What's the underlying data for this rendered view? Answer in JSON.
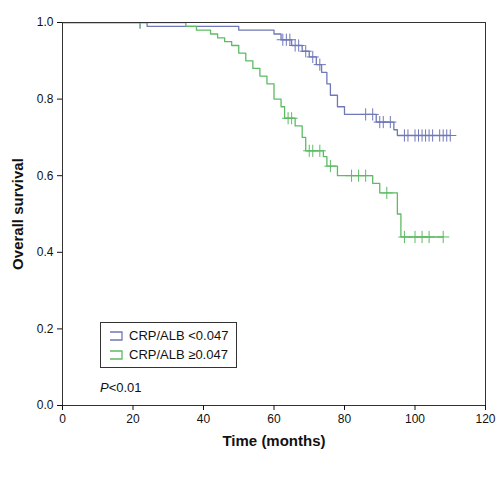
{
  "chart_data": {
    "type": "kaplan-meier",
    "x_label": "Time (months)",
    "y_label": "Overall survival",
    "annotation": "P<0.01",
    "legend": "lower left",
    "xlim": [
      0,
      120
    ],
    "xticks": [
      0,
      20,
      40,
      60,
      80,
      100,
      120
    ],
    "ylim": [
      0,
      1
    ],
    "yticks": [
      {
        "value": 0,
        "label": "0.0"
      },
      {
        "value": 0.2,
        "label": "0.2"
      },
      {
        "value": 0.4,
        "label": "0.4"
      },
      {
        "value": 0.6,
        "label": "0.6"
      },
      {
        "value": 0.8,
        "label": "0.8"
      },
      {
        "value": 1,
        "label": "1.0"
      }
    ],
    "series": [
      {
        "name": "CRP/ALB <0.047",
        "color": "#6f78b8",
        "line_style": "step",
        "marker": "plus",
        "x": [
          0,
          24,
          50,
          60,
          62,
          65,
          68,
          70,
          72,
          73.5,
          75,
          76,
          78,
          80,
          89,
          94,
          95,
          110
        ],
        "values": [
          1.0,
          0.99,
          0.98,
          0.97,
          0.955,
          0.94,
          0.925,
          0.91,
          0.89,
          0.87,
          0.84,
          0.81,
          0.78,
          0.76,
          0.74,
          0.72,
          0.705,
          0.705
        ],
        "censor_x": [
          22,
          62.5,
          63.5,
          64.5,
          66,
          67,
          69,
          71,
          73,
          86,
          88,
          90,
          91,
          93,
          97,
          98,
          100,
          101,
          102,
          103,
          104,
          105,
          107,
          108,
          109,
          110
        ],
        "censor_y": [
          1.0,
          0.955,
          0.955,
          0.955,
          0.94,
          0.94,
          0.925,
          0.91,
          0.89,
          0.76,
          0.76,
          0.74,
          0.74,
          0.74,
          0.705,
          0.705,
          0.705,
          0.705,
          0.705,
          0.705,
          0.705,
          0.705,
          0.705,
          0.705,
          0.705,
          0.705
        ]
      },
      {
        "name": "CRP/ALB ≥0.047",
        "color": "#5dbb63",
        "line_style": "step",
        "marker": "plus",
        "x": [
          0,
          35,
          38,
          42,
          44,
          46,
          48,
          50,
          52,
          54,
          56,
          58,
          60,
          62,
          63,
          66,
          68,
          69,
          74,
          75,
          78,
          88,
          90,
          95,
          96,
          108
        ],
        "values": [
          1.0,
          0.99,
          0.98,
          0.97,
          0.96,
          0.95,
          0.94,
          0.92,
          0.9,
          0.88,
          0.86,
          0.84,
          0.8,
          0.78,
          0.75,
          0.73,
          0.7,
          0.665,
          0.65,
          0.625,
          0.6,
          0.58,
          0.555,
          0.5,
          0.44,
          0.44
        ],
        "censor_x": [
          22,
          64,
          65,
          70,
          71,
          73,
          76,
          82,
          84,
          86,
          92,
          97,
          100,
          102,
          104,
          108
        ],
        "censor_y": [
          1.0,
          0.75,
          0.75,
          0.665,
          0.665,
          0.665,
          0.625,
          0.6,
          0.6,
          0.6,
          0.555,
          0.44,
          0.44,
          0.44,
          0.44,
          0.44
        ]
      }
    ]
  }
}
